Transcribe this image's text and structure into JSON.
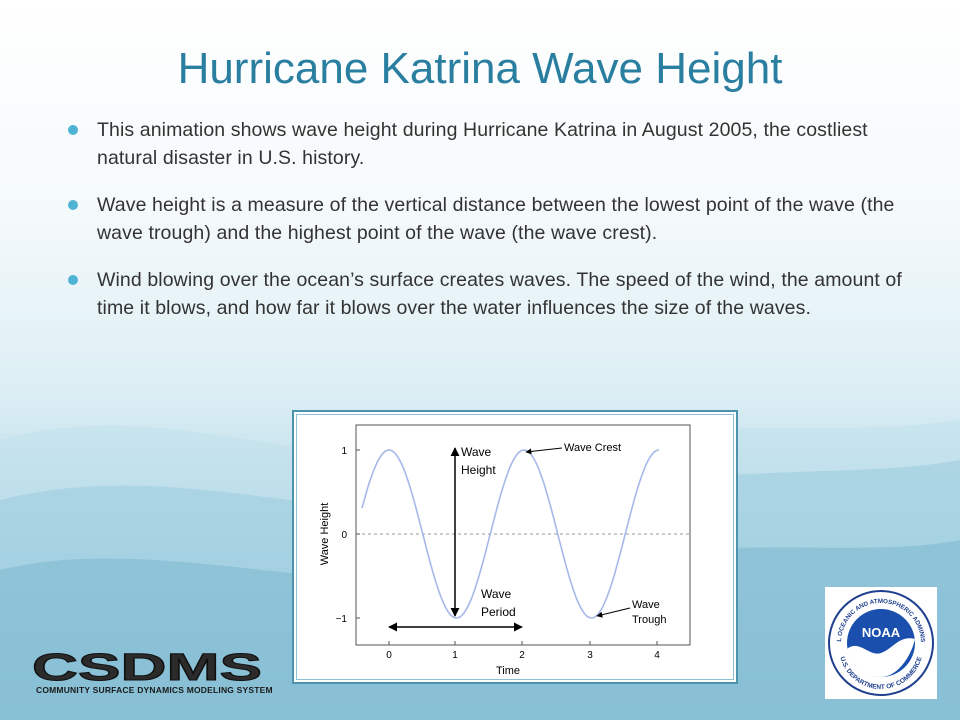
{
  "slide": {
    "title": "Hurricane Katrina Wave Height",
    "bullets": [
      "This animation shows wave height during Hurricane Katrina in August 2005, the costliest natural disaster in U.S. history.",
      "Wave height is a measure of the vertical distance between the lowest point of the wave (the wave trough) and the highest point of the wave (the wave crest).",
      "Wind blowing over the ocean’s surface creates waves. The speed of the wind, the amount of time it blows, and how far it blows over the water influences the size of the waves."
    ]
  },
  "diagram": {
    "ylabel": "Wave Height",
    "xlabel": "Time",
    "yticks": [
      "1",
      "0",
      "−1"
    ],
    "xticks": [
      "0",
      "1",
      "2",
      "3",
      "4"
    ],
    "annotations": {
      "wave_height": [
        "Wave",
        "Height"
      ],
      "wave_crest": "Wave Crest",
      "wave_period": [
        "Wave",
        "Period"
      ],
      "wave_trough": [
        "Wave",
        "Trough"
      ]
    },
    "curve_color": "#a7b8e8"
  },
  "logos": {
    "csdms_text": "CSDMS",
    "csdms_subtitle": "COMMUNITY SURFACE DYNAMICS MODELING SYSTEM",
    "noaa_text": "NOAA",
    "noaa_ring_top": "NATIONAL OCEANIC AND ATMOSPHERIC ADMINISTRATION",
    "noaa_ring_bottom": "U.S. DEPARTMENT OF COMMERCE"
  }
}
